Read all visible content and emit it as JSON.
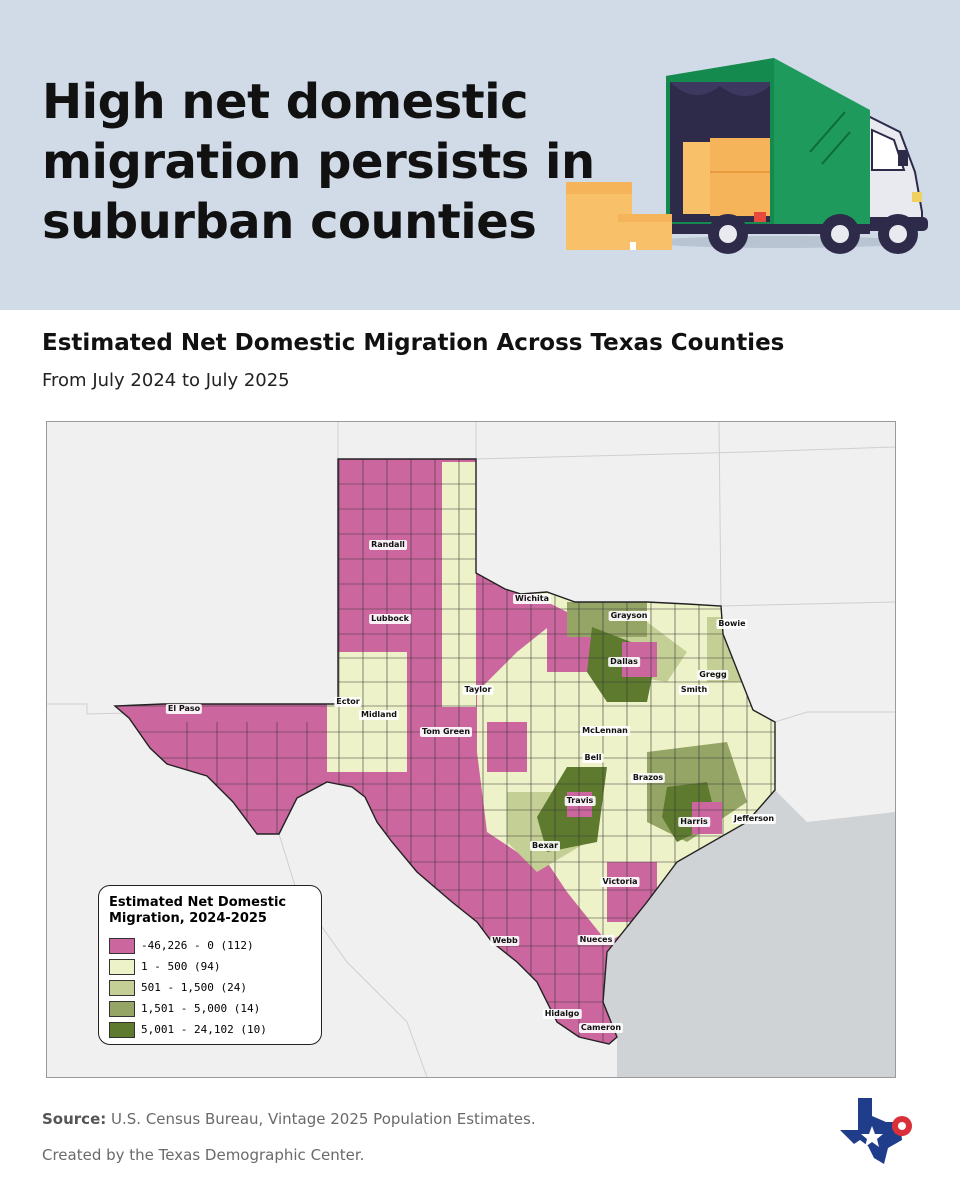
{
  "header": {
    "headline_lines": [
      "High net domestic",
      "migration persists in",
      "suburban counties"
    ]
  },
  "map": {
    "title": "Estimated Net Domestic Migration Across Texas Counties",
    "subtitle": "From July 2024 to July 2025",
    "colors": {
      "class1": "#cc669f",
      "class2": "#eef2c8",
      "class3": "#c4cf95",
      "class4": "#94a565",
      "class5": "#5e7a2e",
      "background": "#f0f0f0",
      "gulf": "#cfd3d6"
    },
    "legend": {
      "title_lines": [
        "Estimated Net Domestic",
        "Migration, 2024-2025"
      ],
      "items": [
        {
          "label": "-46,226 - 0 (112)",
          "color": "#cc669f"
        },
        {
          "label": "1 - 500 (94)",
          "color": "#eef2c8"
        },
        {
          "label": "501 - 1,500 (24)",
          "color": "#c4cf95"
        },
        {
          "label": "1,501 - 5,000 (14)",
          "color": "#94a565"
        },
        {
          "label": "5,001 - 24,102 (10)",
          "color": "#5e7a2e"
        }
      ]
    },
    "county_labels": [
      "Randall",
      "Lubbock",
      "Wichita",
      "Grayson",
      "Bowie",
      "Dallas",
      "Gregg",
      "Smith",
      "Ector",
      "Midland",
      "Taylor",
      "El Paso",
      "Tom Green",
      "McLennan",
      "Bell",
      "Brazos",
      "Travis",
      "Harris",
      "Jefferson",
      "Bexar",
      "Victoria",
      "Webb",
      "Nueces",
      "Hidalgo",
      "Cameron"
    ]
  },
  "footer": {
    "source_label": "Source:",
    "source_text": "U.S. Census Bureau, Vintage 2025 Population Estimates.",
    "credit": "Created by the Texas Demographic Center."
  },
  "icons": [
    "moving-truck-icon",
    "box-icon",
    "texas-logo-icon"
  ]
}
